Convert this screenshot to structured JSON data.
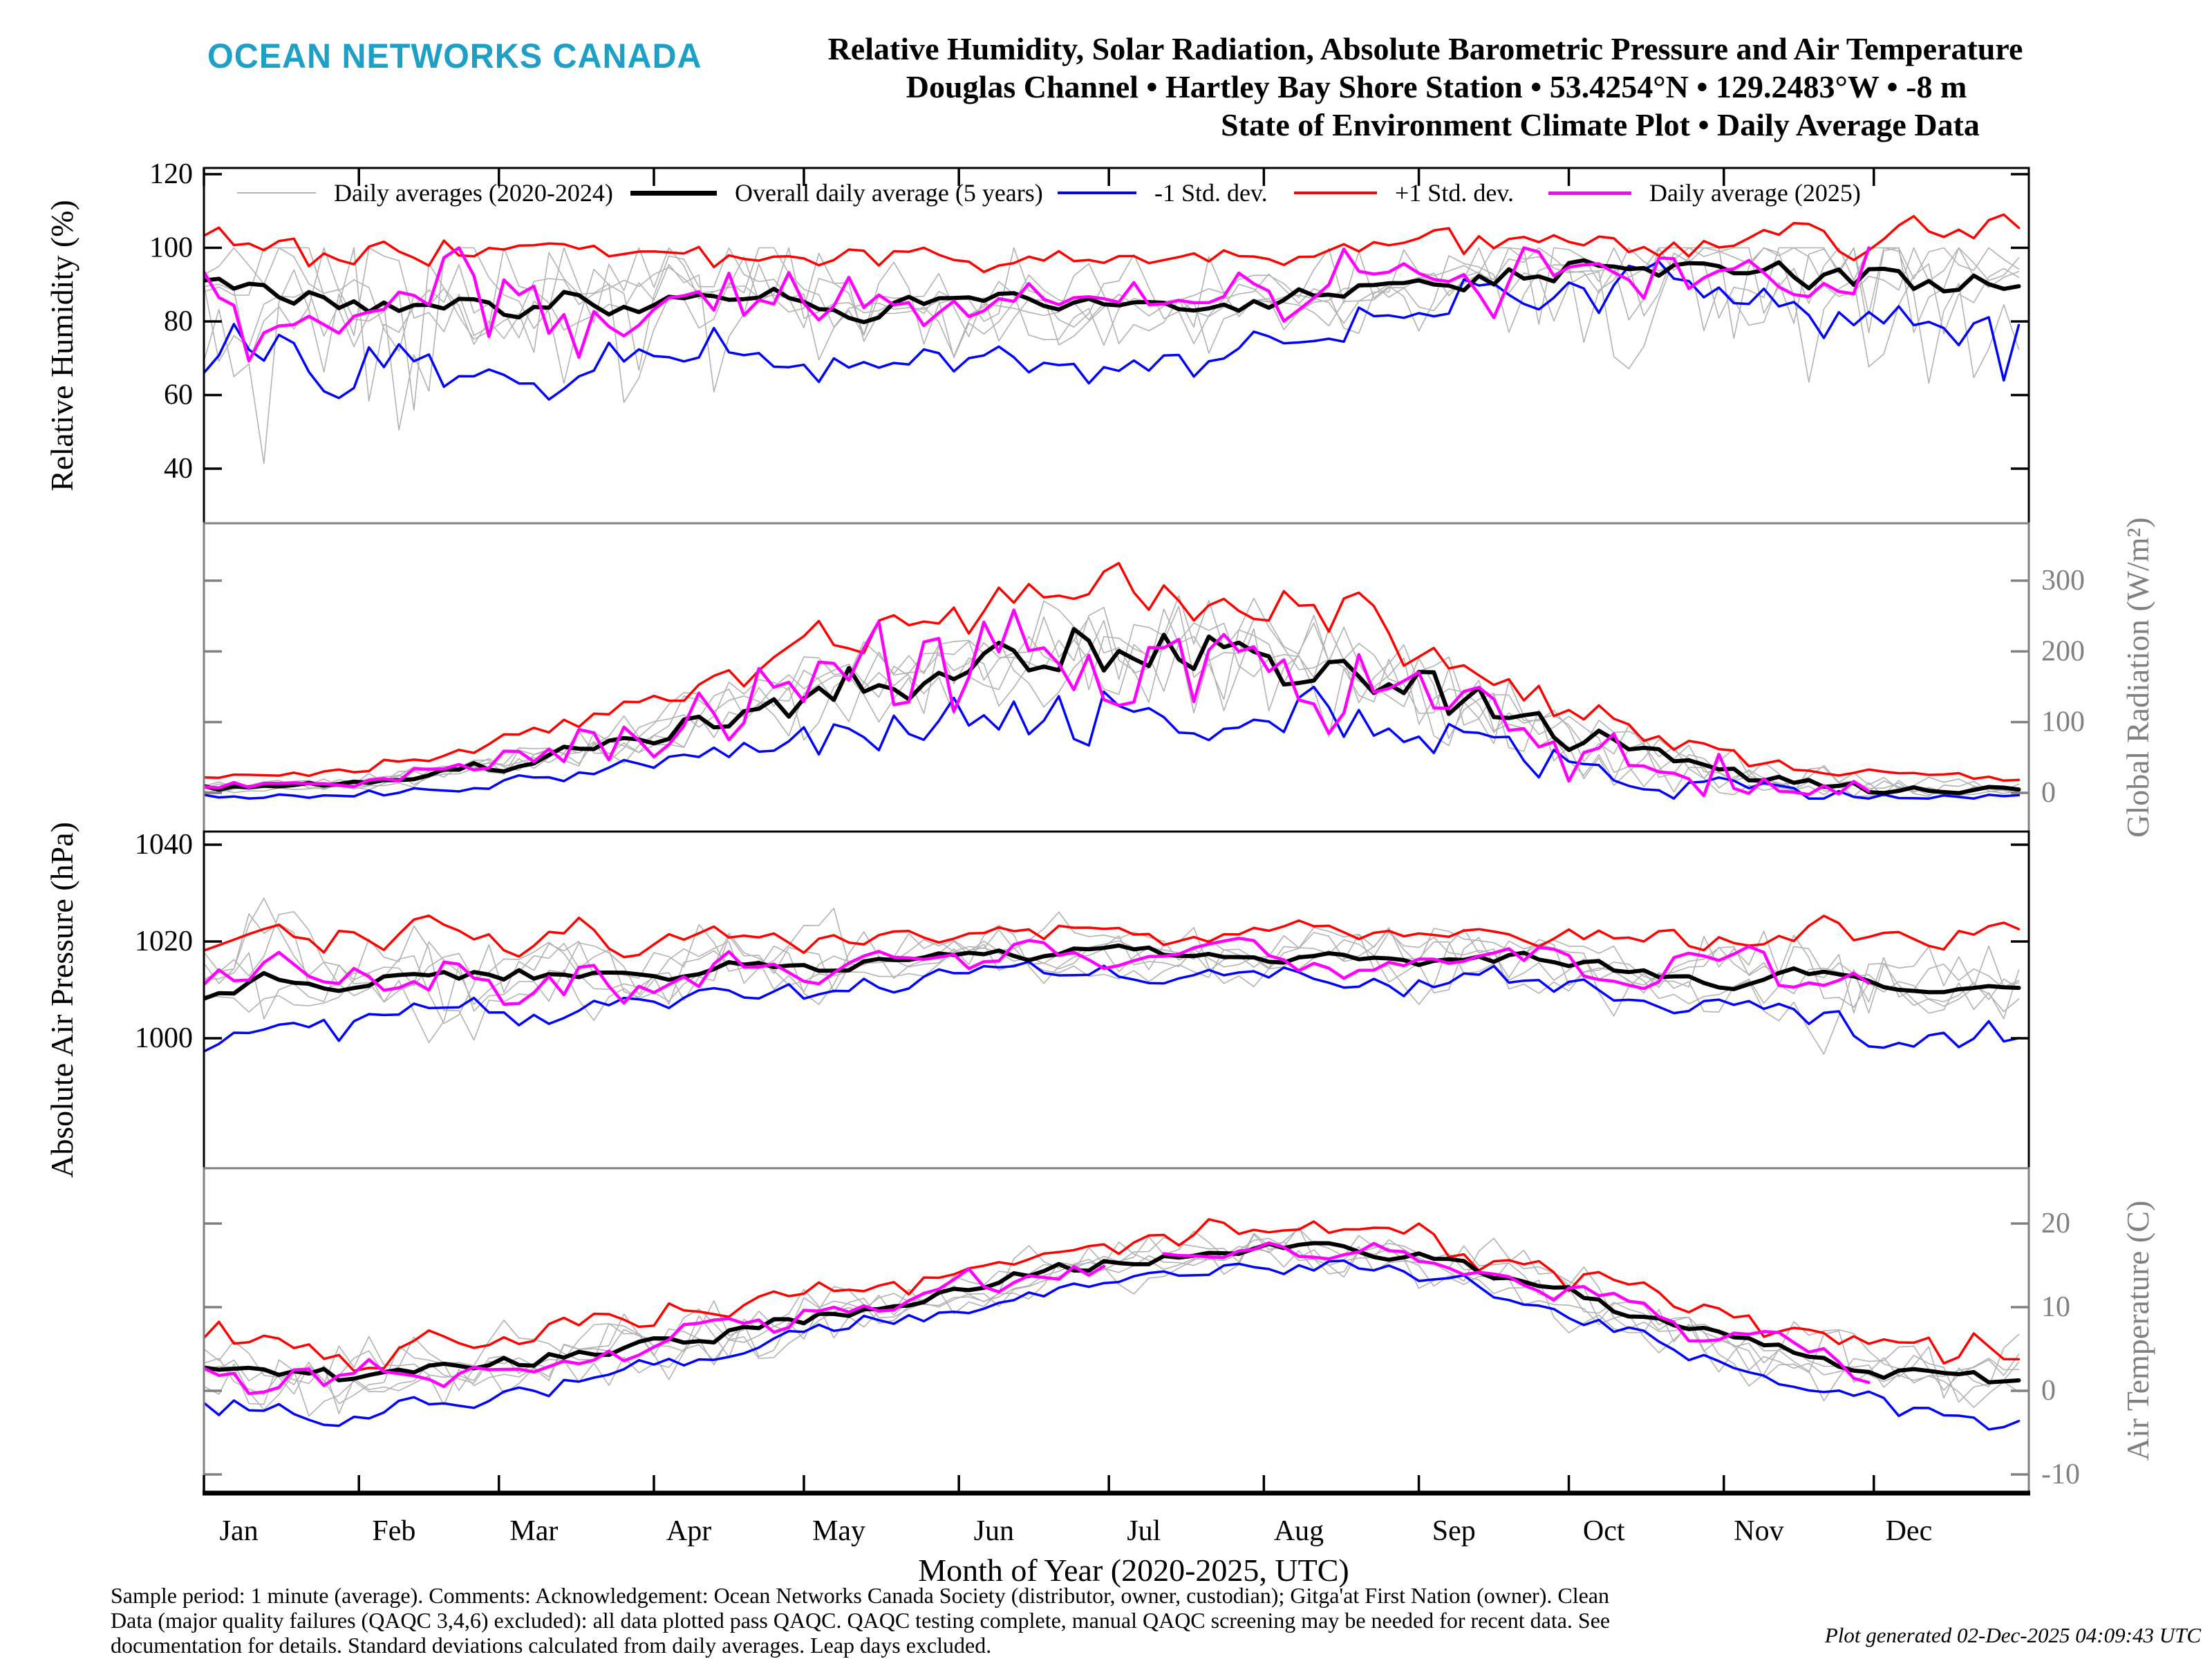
{
  "header": {
    "logo": "OCEAN NETWORKS CANADA",
    "title_line1": "Relative Humidity, Solar Radiation, Absolute Barometric Pressure and Air Temperature",
    "title_line2": "Douglas Channel • Hartley Bay Shore Station • 53.4254°N • 129.2483°W • -8 m",
    "title_line3": "State of Environment Climate Plot • Daily Average Data"
  },
  "colors": {
    "logo_teal": "#1D9FC6",
    "gray_line": "#b2b2b2",
    "black": "#000000",
    "blue": "#0000ff",
    "red": "#ff0000",
    "magenta": "#ff00ff",
    "axis_gray": "#808080"
  },
  "legend": {
    "items": [
      {
        "label": "Daily averages (2020-2024)",
        "color": "#b2b2b2",
        "thickness": 2,
        "sample_width": 114
      },
      {
        "label": "Overall daily average (5 years)",
        "color": "#000000",
        "thickness": 7,
        "sample_width": 125
      },
      {
        "label": "-1 Std. dev.",
        "color": "#0000ff",
        "thickness": 4,
        "sample_width": 114
      },
      {
        "label": "+1 Std. dev.",
        "color": "#ff0000",
        "thickness": 4,
        "sample_width": 120
      },
      {
        "label": "Daily average (2025)",
        "color": "#ff00ff",
        "thickness": 5,
        "sample_width": 120
      }
    ]
  },
  "chart_data": {
    "type": "line",
    "title": "Relative Humidity, Solar Radiation, Absolute Barometric Pressure and Air Temperature",
    "xlabel": "Month of Year (2020-2025, UTC)",
    "months": [
      "Jan",
      "Feb",
      "Mar",
      "Apr",
      "May",
      "Jun",
      "Jul",
      "Aug",
      "Sep",
      "Oct",
      "Nov",
      "Dec"
    ],
    "month_start_days": [
      0,
      31,
      59,
      90,
      120,
      151,
      181,
      212,
      243,
      273,
      304,
      334
    ],
    "x_range_days": [
      0,
      365
    ],
    "anchors_note": "each series holds 25 anchor values evenly spaced across the year (about every 15 days), read from the plot",
    "series_legend": [
      "Daily averages (2020-2024)",
      "Overall daily average (5 years)",
      "-1 Std. dev.",
      "+1 Std. dev.",
      "Daily average (2025)"
    ],
    "gray_years": {
      "count": 5,
      "span": "2020-2024",
      "derived_from": "mean"
    },
    "avg2025_end_day": 335,
    "panels": [
      {
        "name": "relative-humidity",
        "ylabel": "Relative Humidity (%)",
        "label_side": "left",
        "axis_color": "#000000",
        "ticks": [
          120,
          100,
          80,
          60,
          40
        ],
        "ylim": [
          25,
          122
        ],
        "series": {
          "mean": [
            89,
            87,
            85,
            84,
            85,
            86,
            87,
            86,
            85,
            84,
            85,
            85,
            84,
            85,
            86,
            88,
            90,
            92,
            94,
            95,
            95,
            94,
            92,
            90,
            91
          ],
          "plus1sd": [
            102,
            101,
            100,
            99,
            100,
            100,
            100,
            99,
            98,
            97,
            97,
            97,
            96,
            97,
            98,
            99,
            100,
            101,
            102,
            103,
            103,
            103,
            104,
            103,
            104
          ],
          "minus1sd": [
            70,
            67,
            64,
            62,
            64,
            67,
            69,
            70,
            69,
            68,
            70,
            71,
            70,
            72,
            74,
            77,
            81,
            85,
            88,
            89,
            87,
            83,
            77,
            72,
            74
          ],
          "avg2025": [
            88,
            84,
            80,
            86,
            84,
            87,
            85,
            86,
            84,
            86,
            86,
            84,
            85,
            87,
            86,
            89,
            91,
            93,
            95,
            94,
            96,
            93,
            91,
            89,
            90
          ]
        }
      },
      {
        "name": "global-radiation",
        "ylabel": "Global Radiation (W/m²)",
        "label_side": "right",
        "axis_color": "#808080",
        "ticks": [
          300,
          200,
          100,
          0
        ],
        "ylim": [
          -55,
          381
        ],
        "series": {
          "mean": [
            6,
            9,
            15,
            26,
            42,
            62,
            85,
            112,
            140,
            162,
            180,
            195,
            205,
            203,
            192,
            172,
            142,
            110,
            78,
            50,
            28,
            14,
            8,
            5,
            5
          ],
          "plus1sd": [
            23,
            27,
            35,
            50,
            72,
            99,
            130,
            166,
            204,
            234,
            258,
            278,
            292,
            289,
            274,
            247,
            207,
            164,
            120,
            83,
            53,
            34,
            26,
            22,
            22
          ],
          "minus1sd": [
            -6,
            -5,
            -2,
            5,
            14,
            27,
            41,
            57,
            75,
            88,
            100,
            109,
            115,
            114,
            107,
            95,
            76,
            56,
            36,
            19,
            5,
            -3,
            -6,
            -7,
            -7
          ],
          "avg2025": [
            8,
            11,
            17,
            30,
            47,
            68,
            92,
            120,
            150,
            170,
            185,
            200,
            195,
            190,
            180,
            160,
            130,
            100,
            70,
            45,
            26,
            12,
            7,
            5,
            5
          ]
        }
      },
      {
        "name": "absolute-air-pressure",
        "ylabel": "Absolute Air Pressure (hPa)",
        "label_side": "left",
        "axis_color": "#000000",
        "ticks": [
          1040,
          1020,
          1000
        ],
        "ylim": [
          973,
          1043
        ],
        "series": {
          "mean": [
            1009,
            1013,
            1011,
            1014,
            1012,
            1015,
            1013,
            1016,
            1015,
            1016,
            1017,
            1017,
            1018,
            1017,
            1017,
            1017,
            1016,
            1017,
            1016,
            1014,
            1012,
            1013,
            1011,
            1010,
            1012
          ],
          "plus1sd": [
            1020,
            1023,
            1021,
            1023,
            1020,
            1022,
            1019,
            1022,
            1020,
            1021,
            1021,
            1021,
            1022,
            1021,
            1021,
            1022,
            1021,
            1022,
            1022,
            1021,
            1020,
            1022,
            1021,
            1021,
            1023
          ],
          "minus1sd": [
            998,
            1003,
            1001,
            1005,
            1004,
            1008,
            1007,
            1010,
            1010,
            1011,
            1013,
            1013,
            1014,
            1013,
            1013,
            1012,
            1011,
            1012,
            1010,
            1007,
            1004,
            1004,
            1001,
            999,
            1001
          ],
          "avg2025": [
            1012,
            1018,
            1008,
            1016,
            1010,
            1016,
            1012,
            1017,
            1014,
            1017,
            1016,
            1018,
            1017,
            1016,
            1018,
            1016,
            1017,
            1016,
            1015,
            1012,
            1014,
            1011,
            1013,
            1009,
            1014
          ]
        }
      },
      {
        "name": "air-temperature",
        "ylabel": "Air Temperature (C)",
        "label_side": "right",
        "axis_color": "#808080",
        "ticks": [
          20,
          10,
          0,
          -10
        ],
        "ylim": [
          -12,
          26
        ],
        "series": {
          "mean": [
            2.5,
            1.8,
            1.5,
            2.2,
            3.2,
            4.5,
            5.8,
            7.2,
            8.8,
            10.5,
            12.2,
            14,
            15.5,
            16.5,
            17.2,
            17,
            15.8,
            14,
            11.5,
            9,
            6.5,
            4.5,
            3,
            1.5,
            1
          ],
          "plus1sd": [
            6,
            5.3,
            4.8,
            5.2,
            6,
            7.1,
            8.3,
            9.6,
            11.1,
            12.8,
            14.6,
            16.5,
            18.1,
            19.1,
            19.7,
            19.4,
            18.1,
            16.2,
            13.8,
            11.5,
            9.3,
            7.5,
            6.2,
            5,
            4.6
          ],
          "minus1sd": [
            -2,
            -2.7,
            -2.7,
            -1.6,
            -0.2,
            1.5,
            3,
            4.6,
            6.4,
            8.2,
            9.8,
            11.5,
            12.9,
            13.9,
            14.7,
            14.6,
            13.5,
            11.7,
            9,
            6.2,
            3.3,
            0.9,
            -1,
            -3,
            -3.7
          ],
          "avg2025": [
            1.5,
            0.8,
            2,
            1.5,
            3.5,
            4,
            6.2,
            7,
            9.2,
            10,
            12.5,
            13.5,
            15.8,
            16,
            17.5,
            16.8,
            15.5,
            13.5,
            11,
            9.3,
            6,
            4.8,
            2.5,
            1,
            0.5
          ]
        }
      }
    ]
  },
  "footer": {
    "line1": "Sample period: 1 minute (average). Comments: Acknowledgement: Ocean Networks Canada Society (distributor, owner, custodian); Gitga'at First Nation (owner). Clean",
    "line2": "Data (major quality failures (QAQC 3,4,6) excluded): all data plotted pass QAQC. QAQC testing complete, manual QAQC screening may be needed for recent data. See",
    "line3": "documentation for details. Standard deviations calculated from daily averages. Leap days excluded.",
    "generated": "Plot generated 02-Dec-2025 04:09:43 UTC"
  }
}
